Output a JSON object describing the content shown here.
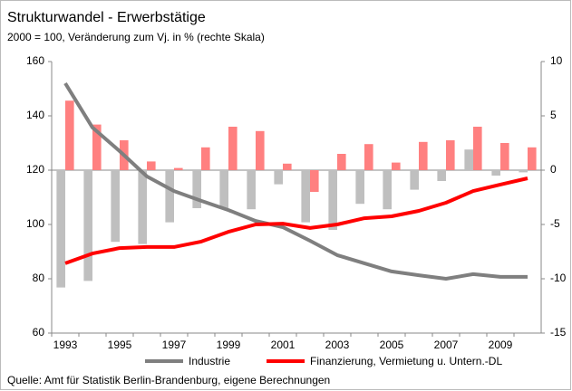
{
  "chart_data": {
    "type": "combo",
    "title": "Strukturwandel - Erwerbstätige",
    "subtitle": "2000 = 100, Veränderung zum Vj. in % (rechte Skala)",
    "source": "Quelle: Amt für Statistik Berlin-Brandenburg, eigene Berechnungen",
    "categories": [
      "1993",
      null,
      "1995",
      null,
      "1997",
      null,
      "1999",
      null,
      "2001",
      null,
      "2003",
      null,
      "2005",
      null,
      "2007",
      null,
      "2009",
      null
    ],
    "series": [
      {
        "type": "bar",
        "axis": "y2",
        "color": "#bfbfbf",
        "values": [
          -10.8,
          -10.2,
          -6.6,
          -6.8,
          -4.8,
          -3.5,
          -3.5,
          -3.6,
          -1.3,
          -4.8,
          -5.5,
          -3.1,
          -3.6,
          -1.8,
          -1.0,
          1.9,
          -0.5,
          -0.2
        ]
      },
      {
        "type": "bar",
        "axis": "y2",
        "color": "#ff8080",
        "values": [
          6.4,
          4.2,
          2.75,
          0.8,
          0.2,
          2.1,
          4.0,
          3.6,
          0.6,
          -2.0,
          1.5,
          2.4,
          0.7,
          2.6,
          2.75,
          4.0,
          2.5,
          2.1
        ]
      },
      {
        "type": "line",
        "name": "Industrie",
        "color": "#7f7f7f",
        "values": [
          152,
          135.7,
          127,
          117.7,
          112.3,
          108.7,
          105.3,
          101.3,
          99,
          94,
          88.7,
          85.7,
          82.7,
          81.3,
          80,
          81.7,
          80.7,
          80.7
        ]
      },
      {
        "type": "line",
        "name": "Finanzierung, Vermietung u. Untern.-DL",
        "color": "#ff0000",
        "values": [
          85.7,
          89.3,
          91.3,
          91.7,
          91.7,
          93.7,
          97.3,
          100,
          100.3,
          98.7,
          100,
          102.3,
          103,
          105,
          108,
          112.3,
          114.7,
          117
        ]
      }
    ],
    "ylim": [
      60,
      160
    ],
    "yticks": [
      60,
      80,
      100,
      120,
      140,
      160
    ],
    "y2lim": [
      -15,
      10
    ],
    "y2ticks": [
      -15,
      -10,
      -5,
      0,
      5,
      10
    ],
    "grid": false
  }
}
